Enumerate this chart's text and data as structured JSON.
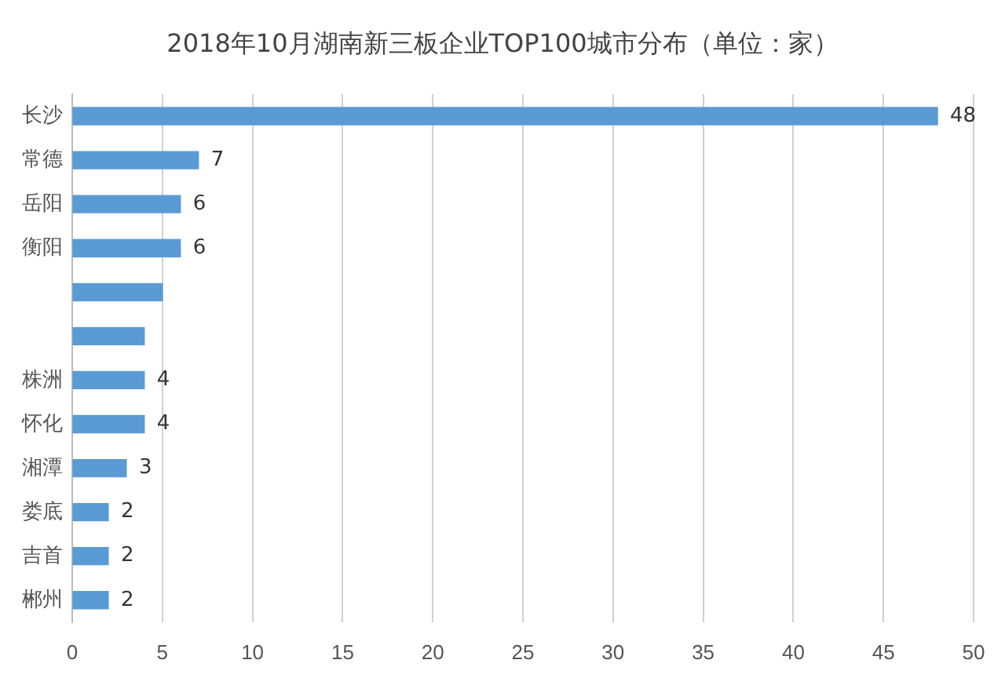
{
  "chart_data": {
    "type": "bar",
    "orientation": "horizontal",
    "title": "2018年10月湖南新三板企业TOP100城市分布（单位：家）",
    "categories": [
      "长沙",
      "常德",
      "岳阳",
      "衡阳",
      null,
      null,
      "株洲",
      "怀化",
      "湘潭",
      "娄底",
      "吉首",
      "郴州"
    ],
    "values": [
      48,
      7,
      6,
      6,
      5,
      4,
      4,
      4,
      3,
      2,
      2,
      2
    ],
    "value_labels": [
      "48",
      "7",
      "6",
      "6",
      null,
      null,
      "4",
      "4",
      "3",
      "2",
      "2",
      "2"
    ],
    "color": "#5b9bd5",
    "xlim": [
      0,
      50
    ],
    "xticks": [
      0,
      5,
      10,
      15,
      20,
      25,
      30,
      35,
      40,
      45,
      50
    ],
    "grid": "x",
    "legend": false
  }
}
